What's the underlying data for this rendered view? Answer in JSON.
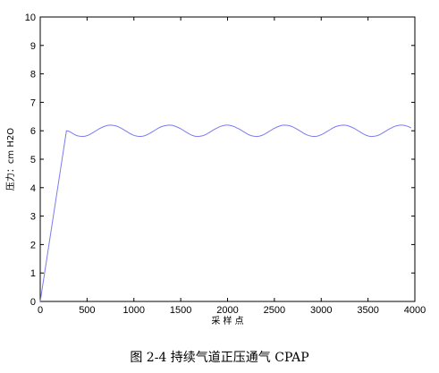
{
  "caption": "图 2-4  持续气道正压通气 CPAP",
  "chart_data": {
    "type": "line",
    "xlabel": "采 样 点",
    "ylabel": "压力：cm H2O",
    "xlim": [
      0,
      4000
    ],
    "ylim": [
      0,
      10
    ],
    "xticks": [
      0,
      500,
      1000,
      1500,
      2000,
      2500,
      3000,
      3500,
      4000
    ],
    "yticks": [
      0,
      1,
      2,
      3,
      4,
      5,
      6,
      7,
      8,
      9,
      10
    ],
    "grid": false,
    "series": [
      {
        "color": "#7b7bf0",
        "x": [
          0,
          280,
          300,
          330,
          360,
          390,
          420,
          450,
          480,
          510,
          540,
          570,
          600,
          630,
          660,
          690,
          720,
          750,
          780,
          810,
          840,
          870,
          900,
          930,
          960,
          990,
          1020,
          1050,
          1080,
          1110,
          1140,
          1170,
          1200,
          1230,
          1260,
          1290,
          1320,
          1350,
          1380,
          1410,
          1440,
          1470,
          1500,
          1530,
          1560,
          1590,
          1620,
          1650,
          1680,
          1710,
          1740,
          1770,
          1800,
          1830,
          1860,
          1890,
          1920,
          1950,
          1980,
          2010,
          2040,
          2070,
          2100,
          2130,
          2160,
          2190,
          2220,
          2250,
          2280,
          2310,
          2340,
          2370,
          2400,
          2430,
          2460,
          2490,
          2520,
          2550,
          2580,
          2610,
          2640,
          2670,
          2700,
          2730,
          2760,
          2790,
          2820,
          2850,
          2880,
          2910,
          2940,
          2970,
          3000,
          3030,
          3060,
          3090,
          3120,
          3150,
          3180,
          3210,
          3240,
          3270,
          3300,
          3330,
          3360,
          3390,
          3420,
          3450,
          3480,
          3510,
          3540,
          3570,
          3600,
          3630,
          3660,
          3690,
          3720,
          3750,
          3780,
          3810,
          3840,
          3870,
          3900,
          3930,
          3960
        ],
        "y": [
          0,
          6.0,
          5.99,
          5.94,
          5.88,
          5.83,
          5.81,
          5.8,
          5.81,
          5.84,
          5.89,
          5.95,
          6.01,
          6.07,
          6.12,
          6.16,
          6.19,
          6.2,
          6.19,
          6.17,
          6.13,
          6.08,
          6.02,
          5.96,
          5.9,
          5.85,
          5.82,
          5.8,
          5.8,
          5.82,
          5.86,
          5.91,
          5.97,
          6.03,
          6.09,
          6.14,
          6.17,
          6.19,
          6.2,
          6.19,
          6.16,
          6.12,
          6.07,
          6.01,
          5.95,
          5.89,
          5.84,
          5.81,
          5.8,
          5.81,
          5.83,
          5.87,
          5.93,
          5.99,
          6.05,
          6.1,
          6.15,
          6.18,
          6.2,
          6.2,
          6.18,
          6.15,
          6.1,
          6.05,
          5.99,
          5.93,
          5.87,
          5.83,
          5.81,
          5.8,
          5.81,
          5.84,
          5.89,
          5.95,
          6.01,
          6.07,
          6.12,
          6.16,
          6.19,
          6.2,
          6.19,
          6.17,
          6.13,
          6.08,
          6.02,
          5.96,
          5.9,
          5.85,
          5.82,
          5.8,
          5.8,
          5.82,
          5.86,
          5.91,
          5.97,
          6.03,
          6.09,
          6.14,
          6.17,
          6.19,
          6.2,
          6.19,
          6.16,
          6.12,
          6.07,
          6.01,
          5.95,
          5.89,
          5.84,
          5.81,
          5.8,
          5.81,
          5.83,
          5.87,
          5.93,
          5.99,
          6.05,
          6.1,
          6.15,
          6.18,
          6.2,
          6.2,
          6.18,
          6.15,
          6.1
        ]
      }
    ]
  }
}
